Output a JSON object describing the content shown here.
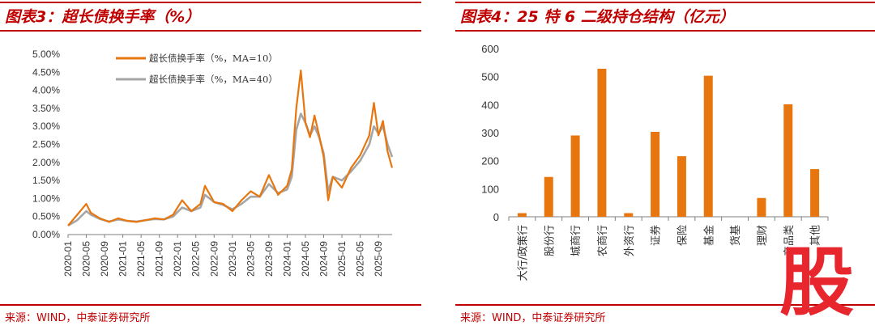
{
  "left": {
    "title": "图表3：超长债换手率（%）",
    "source": "来源：WIND，中泰证券研究所"
  },
  "right": {
    "title": "图表4：25 特 6 二级持仓结构（亿元）",
    "source": "来源：WIND，中泰证券研究所"
  },
  "watermark": "股",
  "colors": {
    "accent": "#c00000",
    "orange": "#e8760f",
    "gray": "#a6a6a6"
  },
  "chart_data": [
    {
      "type": "line",
      "title": "超长债换手率（%）",
      "ylim": [
        0,
        0.05
      ],
      "y_ticks": [
        "0.00%",
        "0.50%",
        "1.00%",
        "1.50%",
        "2.00%",
        "2.50%",
        "3.00%",
        "3.50%",
        "4.00%",
        "4.50%",
        "5.00%"
      ],
      "x_ticks": [
        "2020-01",
        "2020-05",
        "2020-09",
        "2021-01",
        "2021-05",
        "2021-09",
        "2022-01",
        "2022-05",
        "2022-09",
        "2023-01",
        "2023-05",
        "2023-09",
        "2024-01",
        "2024-05",
        "2024-09",
        "2025-01",
        "2025-05",
        "2025-09"
      ],
      "legend_position": "top-center",
      "grid": false,
      "x": [
        "2020-01",
        "2020-03",
        "2020-05",
        "2020-06",
        "2020-08",
        "2020-10",
        "2020-12",
        "2021-02",
        "2021-04",
        "2021-06",
        "2021-08",
        "2021-10",
        "2021-12",
        "2022-02",
        "2022-04",
        "2022-06",
        "2022-07",
        "2022-09",
        "2022-11",
        "2023-01",
        "2023-03",
        "2023-05",
        "2023-07",
        "2023-09",
        "2023-11",
        "2024-01",
        "2024-02",
        "2024-03",
        "2024-04",
        "2024-05",
        "2024-06",
        "2024-07",
        "2024-08",
        "2024-09",
        "2024-10",
        "2024-11",
        "2025-01",
        "2025-03",
        "2025-05",
        "2025-07",
        "2025-08",
        "2025-09",
        "2025-10",
        "2025-11",
        "2025-12"
      ],
      "series": [
        {
          "name": "超长债换手率（%，MA=10）",
          "color": "#e8760f",
          "values": [
            0.0025,
            0.0055,
            0.0085,
            0.006,
            0.0045,
            0.0035,
            0.0045,
            0.0038,
            0.0035,
            0.004,
            0.0045,
            0.0042,
            0.0055,
            0.0095,
            0.0065,
            0.0085,
            0.0135,
            0.009,
            0.0085,
            0.0065,
            0.0095,
            0.012,
            0.0105,
            0.0165,
            0.011,
            0.0135,
            0.018,
            0.035,
            0.0455,
            0.031,
            0.027,
            0.033,
            0.0275,
            0.0215,
            0.0095,
            0.016,
            0.013,
            0.0185,
            0.022,
            0.0275,
            0.0365,
            0.0275,
            0.0315,
            0.023,
            0.0185
          ]
        },
        {
          "name": "超长债换手率（%，MA=40）",
          "color": "#a6a6a6",
          "values": [
            0.0025,
            0.004,
            0.0065,
            0.0055,
            0.0043,
            0.0036,
            0.0042,
            0.0038,
            0.0036,
            0.004,
            0.0043,
            0.0042,
            0.005,
            0.0075,
            0.0065,
            0.0075,
            0.011,
            0.009,
            0.0082,
            0.007,
            0.0085,
            0.0105,
            0.0105,
            0.014,
            0.0115,
            0.0125,
            0.016,
            0.029,
            0.0335,
            0.031,
            0.0275,
            0.03,
            0.027,
            0.0225,
            0.012,
            0.016,
            0.015,
            0.0175,
            0.0205,
            0.025,
            0.03,
            0.028,
            0.03,
            0.025,
            0.0215
          ]
        }
      ]
    },
    {
      "type": "bar",
      "title": "25 特 6 二级持仓结构（亿元）",
      "ylim": [
        0,
        600
      ],
      "y_ticks": [
        0,
        100,
        200,
        300,
        400,
        500,
        600
      ],
      "grid": false,
      "categories": [
        "大行/政策行",
        "股份行",
        "城商行",
        "农商行",
        "外资行",
        "证券",
        "保险",
        "基金",
        "货基",
        "理财",
        "产品类",
        "其他"
      ],
      "values": [
        13,
        142,
        290,
        528,
        13,
        303,
        216,
        503,
        0,
        67,
        401,
        170
      ],
      "color": "#e8760f"
    }
  ]
}
